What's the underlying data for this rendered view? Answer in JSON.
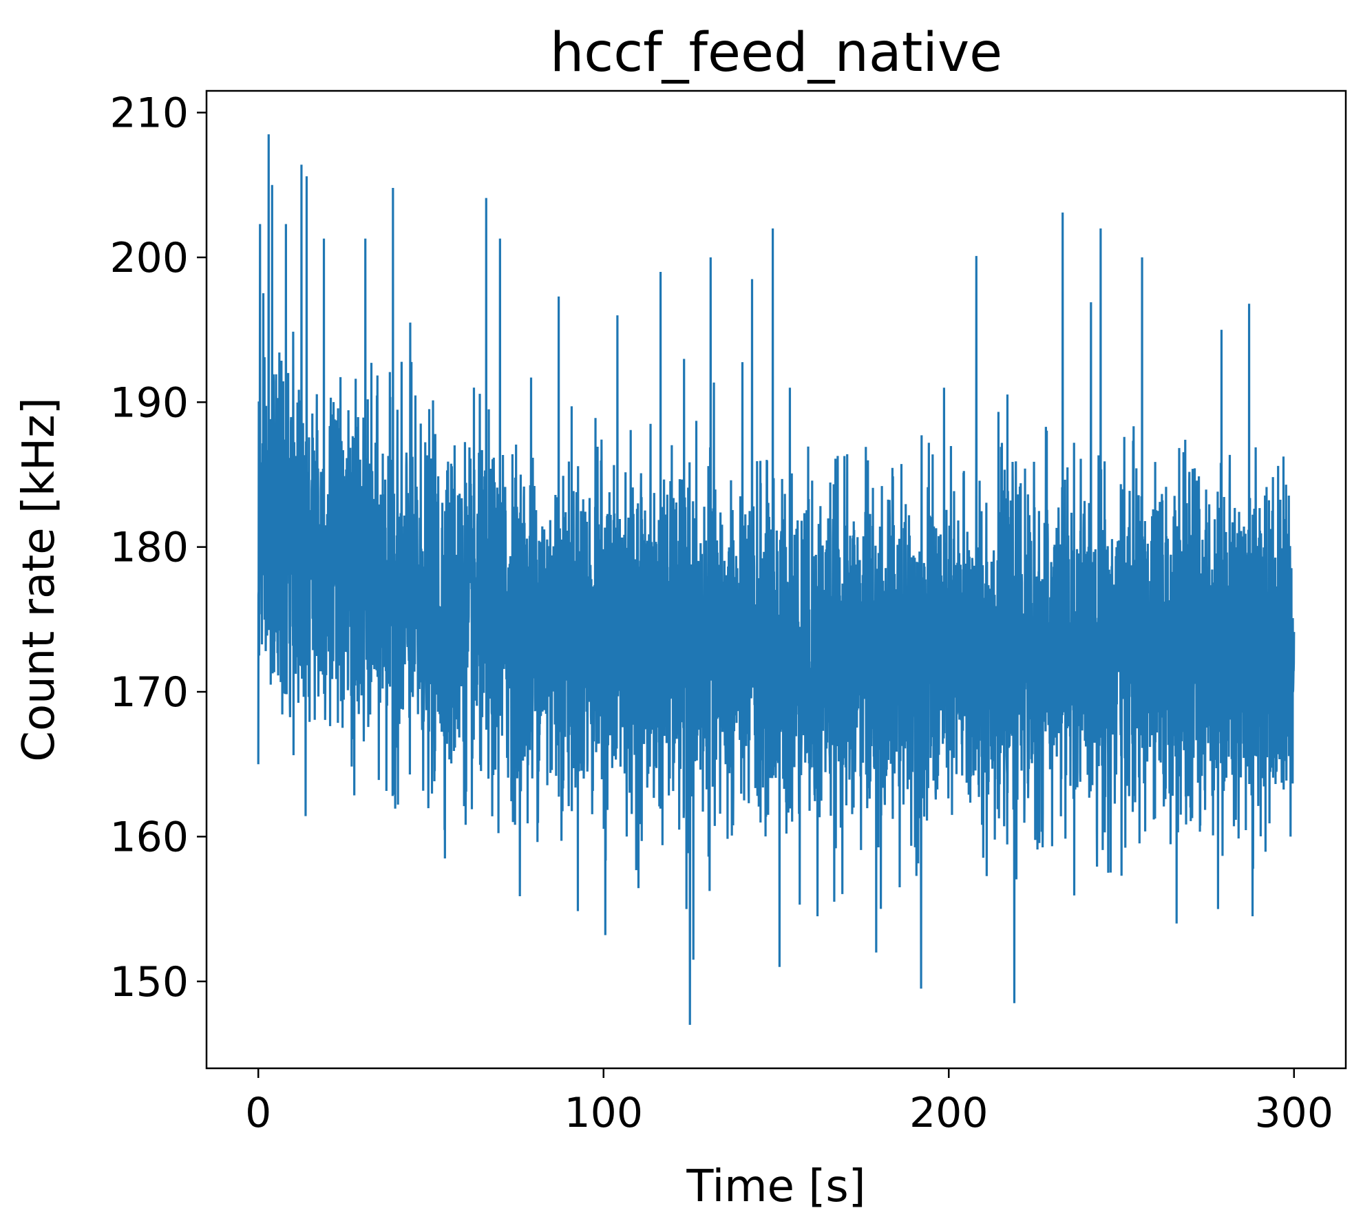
{
  "chart_data": {
    "type": "line",
    "title": "hccf_feed_native",
    "xlabel": "Time [s]",
    "ylabel": "Count rate [kHz]",
    "xlim": [
      -15,
      315
    ],
    "ylim": [
      144,
      211.5
    ],
    "x_ticks": [
      0,
      100,
      200,
      300
    ],
    "y_ticks": [
      150,
      160,
      170,
      180,
      190,
      200,
      210
    ],
    "grid": false,
    "legend": "none",
    "series": [
      {
        "color": "#1f77b4",
        "x_range": [
          0,
          300
        ],
        "trend_mean": [
          [
            0,
            181
          ],
          [
            20,
            179
          ],
          [
            50,
            175.5
          ],
          [
            100,
            173.5
          ],
          [
            150,
            172.5
          ],
          [
            200,
            172.5
          ],
          [
            250,
            173
          ],
          [
            300,
            173
          ]
        ],
        "peaks": [
          [
            0,
            165
          ],
          [
            0.5,
            202.3
          ],
          [
            3,
            208.5
          ],
          [
            4,
            205
          ],
          [
            8,
            202.3
          ],
          [
            12.5,
            206.4
          ],
          [
            14,
            205.6
          ],
          [
            19,
            201.3
          ],
          [
            31,
            201.3
          ],
          [
            39,
            204.8
          ],
          [
            44,
            195.5
          ],
          [
            66,
            204.1
          ],
          [
            70,
            201.3
          ],
          [
            79,
            191.7
          ],
          [
            87,
            197.3
          ],
          [
            100.5,
            153.2
          ],
          [
            104,
            196
          ],
          [
            116.5,
            199
          ],
          [
            124,
            155
          ],
          [
            125,
            147
          ],
          [
            126,
            151.5
          ],
          [
            131,
            200
          ],
          [
            143,
            198.5
          ],
          [
            149,
            202
          ],
          [
            151,
            151
          ],
          [
            154,
            191
          ],
          [
            162,
            154.5
          ],
          [
            179,
            152
          ],
          [
            192,
            149.5
          ],
          [
            208,
            200.1
          ],
          [
            219,
            148.5
          ],
          [
            233,
            203.1
          ],
          [
            244,
            202
          ],
          [
            256,
            200
          ],
          [
            266,
            154
          ],
          [
            278,
            155
          ],
          [
            279,
            195
          ],
          [
            287,
            196.8
          ],
          [
            288,
            154.5
          ],
          [
            299,
            160
          ]
        ]
      }
    ]
  }
}
